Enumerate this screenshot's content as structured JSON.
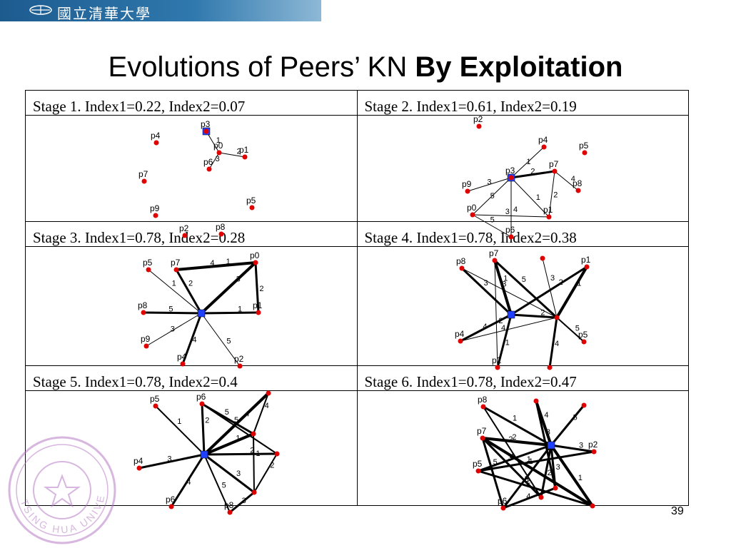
{
  "banner": {
    "university_name": "國立清華大學",
    "colors": {
      "bar": "#1d5b8f",
      "text": "#ffffff"
    }
  },
  "slide": {
    "title_plain": "Evolutions of Peers’ KN ",
    "title_bold": "By Exploitation",
    "page_number": "39"
  },
  "stages": [
    {
      "label": "Stage 1. Index1=0.22, Index2=0.07"
    },
    {
      "label": "Stage 2. Index1=0.61, Index2=0.19"
    },
    {
      "label": "Stage 3. Index1=0.78, Index2=0.28"
    },
    {
      "label": "Stage 4. Index1=0.78, Index2=0.38"
    },
    {
      "label": "Stage 5. Index1=0.78, Index2=0.4"
    },
    {
      "label": "Stage 6. Index1=0.78, Index2=0.47"
    }
  ],
  "graph_labels": {
    "stage1": [
      "p4",
      "p3",
      "p0",
      "p1",
      "p6",
      "p7",
      "p5",
      "p9",
      "p2",
      "p8"
    ],
    "stage2": [
      "p2",
      "p4",
      "p5",
      "p3",
      "p7",
      "p9",
      "p8",
      "p0",
      "p1",
      "p6"
    ],
    "stage3": [
      "p5",
      "p7",
      "p0",
      "p8",
      "p1",
      "p9",
      "p4",
      "p2"
    ],
    "stage4": [
      "p7",
      "p1",
      "p8",
      "p4",
      "p5",
      "p2"
    ],
    "stage5": [
      "p5",
      "p6",
      "p4",
      "p6",
      "p8"
    ],
    "stage6": [
      "p8",
      "p7",
      "p2",
      "p5",
      "p6"
    ]
  },
  "edge_weights": [
    "1",
    "2",
    "3",
    "4",
    "5"
  ],
  "seal": {
    "text": "TSING HUA UNIVERSITY"
  },
  "colors": {
    "node": "#e00000",
    "hub": "#2040ff",
    "edge": "#000000"
  }
}
